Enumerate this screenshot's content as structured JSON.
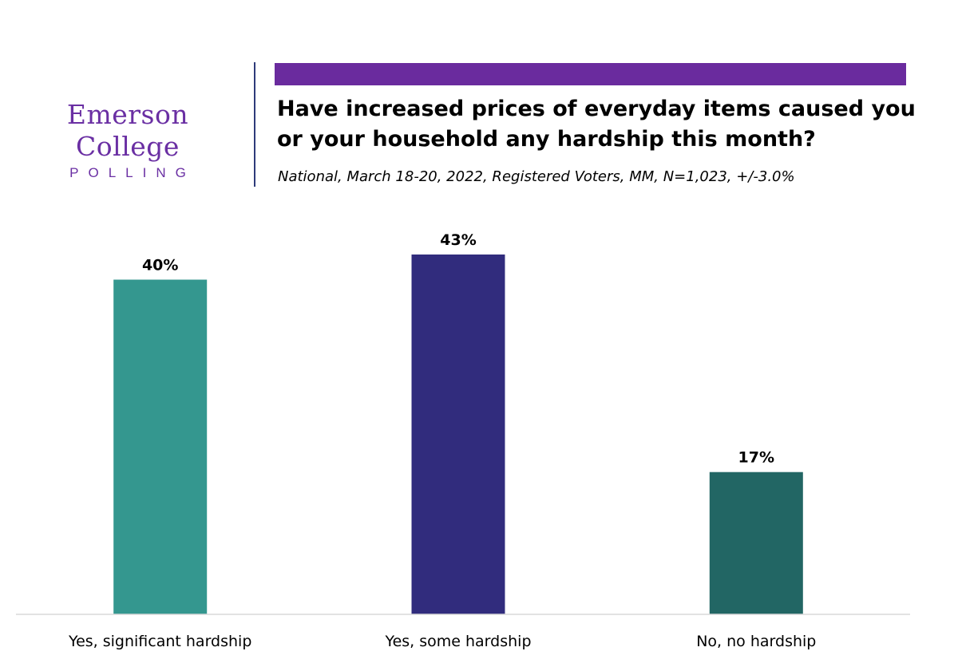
{
  "brand": {
    "name": "Emerson College",
    "sub": "POLLING",
    "color": "#6a2fa3"
  },
  "header": {
    "title_line1": "Have increased prices of everyday items caused you",
    "title_line2": "or your household any hardship this month?",
    "subtitle": "National, March 18-20, 2022, Registered Voters, MM, N=1,023, +/-3.0%",
    "accent_color": "#6a2b9e"
  },
  "chart_data": {
    "type": "bar",
    "categories": [
      "Yes, significant hardship",
      "Yes, some hardship",
      "No, no hardship"
    ],
    "values": [
      40,
      43,
      17
    ],
    "data_labels": [
      "40%",
      "43%",
      "17%"
    ],
    "colors": [
      "#34978f",
      "#312c7d",
      "#226664"
    ],
    "title": "Have increased prices of everyday items caused you or your household any hardship this month?",
    "subtitle": "National, March 18-20, 2022, Registered Voters, MM, N=1,023, +/-3.0%",
    "xlabel": "",
    "ylabel": "",
    "ylim": [
      0,
      43
    ],
    "grid": false,
    "legend": "none"
  }
}
